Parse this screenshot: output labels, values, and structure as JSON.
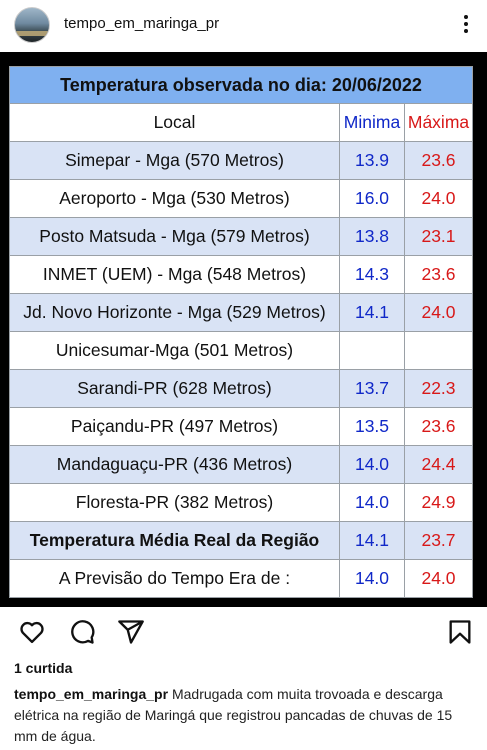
{
  "header": {
    "username": "tempo_em_maringa_pr",
    "more_icon": "more-vertical-icon"
  },
  "table": {
    "title": "Temperatura observada no dia: 20/06/2022",
    "headers": {
      "local": "Local",
      "min": "Minima",
      "max": "Máxima"
    },
    "rows": [
      {
        "local": "Simepar - Mga  (570 Metros)",
        "min": "13.9",
        "max": "23.6"
      },
      {
        "local": "Aeroporto - Mga (530 Metros)",
        "min": "16.0",
        "max": "24.0"
      },
      {
        "local": "Posto Matsuda - Mga (579 Metros)",
        "min": "13.8",
        "max": "23.1"
      },
      {
        "local": "INMET (UEM) - Mga  (548 Metros)",
        "min": "14.3",
        "max": "23.6"
      },
      {
        "local": "Jd. Novo Horizonte - Mga (529 Metros)",
        "min": "14.1",
        "max": "24.0"
      },
      {
        "local": "Unicesumar-Mga (501 Metros)",
        "min": "",
        "max": ""
      },
      {
        "local": "Sarandi-PR  (628 Metros)",
        "min": "13.7",
        "max": "22.3"
      },
      {
        "local": "Paiçandu-PR (497 Metros)",
        "min": "13.5",
        "max": "23.6"
      },
      {
        "local": "Mandaguaçu-PR (436 Metros)",
        "min": "14.0",
        "max": "24.4"
      },
      {
        "local": "Floresta-PR (382 Metros)",
        "min": "14.0",
        "max": "24.9"
      },
      {
        "local": "Temperatura Média Real da Região",
        "min": "14.1",
        "max": "23.7"
      },
      {
        "local": "A Previsão do Tempo Era de :",
        "min": "14.0",
        "max": "24.0"
      }
    ]
  },
  "actions": {
    "icons": [
      "heart-icon",
      "comment-icon",
      "share-icon",
      "bookmark-icon"
    ]
  },
  "likes": "1 curtida",
  "caption": {
    "user": "tempo_em_maringa_pr",
    "text": "Madrugada com muita trovoada e descarga elétrica na região de Maringá que registrou pancadas de chuvas de 15 mm de água."
  },
  "colors": {
    "title_bg": "#7fb0f0",
    "row_alt_bg": "#d9e3f5",
    "min_color": "#1028c8",
    "max_color": "#d81818"
  }
}
